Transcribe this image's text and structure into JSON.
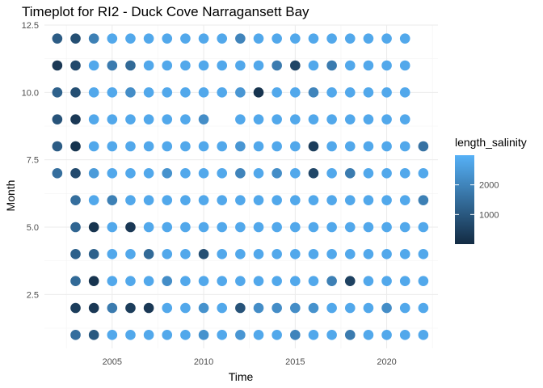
{
  "chart_data": {
    "type": "scatter",
    "title": "Timeplot for RI2 - Duck Cove Narragansett Bay",
    "xlabel": "Time",
    "ylabel": "Month",
    "xlim": [
      2001.3,
      2022.8
    ],
    "ylim": [
      0.5,
      12.5
    ],
    "x_ticks": [
      2005,
      2010,
      2015,
      2020
    ],
    "y_ticks": [
      2.5,
      5.0,
      7.5,
      10.0,
      12.5
    ],
    "x_tick_labels": [
      "2005",
      "2010",
      "2015",
      "2020"
    ],
    "y_tick_labels": [
      "2.5",
      "5.0",
      "7.5",
      "10.0",
      "12.5"
    ],
    "grid": true,
    "color_scale": {
      "name": "length_salinity",
      "range": [
        0,
        3000
      ],
      "low_color": "#132b43",
      "high_color": "#56b1f7",
      "ticks": [
        1000,
        2000
      ],
      "tick_labels": [
        "1000",
        "2000"
      ],
      "legend_position": "right"
    },
    "series": [
      {
        "year": 2002,
        "points": [
          [
            7,
            1500
          ],
          [
            8,
            1100
          ],
          [
            9,
            900
          ],
          [
            10,
            1200
          ],
          [
            11,
            300
          ],
          [
            12,
            1100
          ]
        ]
      },
      {
        "year": 2003,
        "points": [
          [
            1,
            1500
          ],
          [
            2,
            400
          ],
          [
            3,
            1400
          ],
          [
            4,
            1200
          ],
          [
            5,
            1300
          ],
          [
            6,
            1500
          ],
          [
            7,
            700
          ],
          [
            8,
            200
          ],
          [
            9,
            300
          ],
          [
            10,
            800
          ],
          [
            11,
            700
          ],
          [
            12,
            800
          ]
        ]
      },
      {
        "year": 2004,
        "points": [
          [
            1,
            1000
          ],
          [
            2,
            300
          ],
          [
            3,
            200
          ],
          [
            4,
            1200
          ],
          [
            5,
            200
          ],
          [
            6,
            2800
          ],
          [
            7,
            2500
          ],
          [
            8,
            2800
          ],
          [
            9,
            2800
          ],
          [
            10,
            2800
          ],
          [
            11,
            2800
          ],
          [
            12,
            1900
          ]
        ]
      },
      {
        "year": 2005,
        "points": [
          [
            1,
            2800
          ],
          [
            2,
            1800
          ],
          [
            3,
            2800
          ],
          [
            4,
            2800
          ],
          [
            5,
            2800
          ],
          [
            6,
            1900
          ],
          [
            7,
            2800
          ],
          [
            8,
            2800
          ],
          [
            9,
            2800
          ],
          [
            10,
            2800
          ],
          [
            11,
            1800
          ],
          [
            12,
            2800
          ]
        ]
      },
      {
        "year": 2006,
        "points": [
          [
            1,
            2800
          ],
          [
            2,
            400
          ],
          [
            3,
            2800
          ],
          [
            4,
            2800
          ],
          [
            5,
            300
          ],
          [
            6,
            2800
          ],
          [
            7,
            2800
          ],
          [
            8,
            2800
          ],
          [
            9,
            2800
          ],
          [
            10,
            2200
          ],
          [
            11,
            1400
          ],
          [
            12,
            2800
          ]
        ]
      },
      {
        "year": 2007,
        "points": [
          [
            1,
            2800
          ],
          [
            2,
            300
          ],
          [
            3,
            2800
          ],
          [
            4,
            1400
          ],
          [
            5,
            2800
          ],
          [
            6,
            2800
          ],
          [
            7,
            2800
          ],
          [
            8,
            2800
          ],
          [
            9,
            2800
          ],
          [
            10,
            2800
          ],
          [
            11,
            2800
          ],
          [
            12,
            2800
          ]
        ]
      },
      {
        "year": 2008,
        "points": [
          [
            1,
            2800
          ],
          [
            2,
            2800
          ],
          [
            3,
            2200
          ],
          [
            4,
            2800
          ],
          [
            5,
            2800
          ],
          [
            6,
            2800
          ],
          [
            7,
            2300
          ],
          [
            8,
            2800
          ],
          [
            9,
            2800
          ],
          [
            10,
            2800
          ],
          [
            11,
            2800
          ],
          [
            12,
            2800
          ]
        ]
      },
      {
        "year": 2009,
        "points": [
          [
            1,
            2800
          ],
          [
            2,
            2800
          ],
          [
            3,
            2800
          ],
          [
            4,
            2800
          ],
          [
            5,
            2800
          ],
          [
            6,
            2800
          ],
          [
            7,
            2800
          ],
          [
            8,
            2800
          ],
          [
            9,
            2800
          ],
          [
            10,
            2800
          ],
          [
            11,
            2800
          ],
          [
            12,
            2800
          ]
        ]
      },
      {
        "year": 2010,
        "points": [
          [
            1,
            2300
          ],
          [
            2,
            2300
          ],
          [
            3,
            2800
          ],
          [
            4,
            800
          ],
          [
            5,
            2800
          ],
          [
            6,
            2800
          ],
          [
            7,
            2800
          ],
          [
            8,
            2800
          ],
          [
            9,
            2200
          ],
          [
            10,
            2800
          ],
          [
            11,
            2800
          ],
          [
            12,
            2800
          ]
        ]
      },
      {
        "year": 2011,
        "points": [
          [
            1,
            2800
          ],
          [
            2,
            2800
          ],
          [
            3,
            2800
          ],
          [
            4,
            2800
          ],
          [
            5,
            2800
          ],
          [
            6,
            2800
          ],
          [
            7,
            2800
          ],
          [
            8,
            2800
          ],
          [
            10,
            2800
          ],
          [
            11,
            2800
          ],
          [
            12,
            2800
          ]
        ]
      },
      {
        "year": 2012,
        "points": [
          [
            1,
            2400
          ],
          [
            2,
            900
          ],
          [
            3,
            2800
          ],
          [
            4,
            2800
          ],
          [
            5,
            2800
          ],
          [
            6,
            2800
          ],
          [
            7,
            2000
          ],
          [
            8,
            2400
          ],
          [
            9,
            2800
          ],
          [
            10,
            2400
          ],
          [
            11,
            2800
          ],
          [
            12,
            2000
          ]
        ]
      },
      {
        "year": 2013,
        "points": [
          [
            1,
            2800
          ],
          [
            2,
            2200
          ],
          [
            3,
            2800
          ],
          [
            4,
            2800
          ],
          [
            5,
            2800
          ],
          [
            6,
            2800
          ],
          [
            7,
            2800
          ],
          [
            8,
            2800
          ],
          [
            9,
            2800
          ],
          [
            10,
            200
          ],
          [
            11,
            2800
          ],
          [
            12,
            2800
          ]
        ]
      },
      {
        "year": 2014,
        "points": [
          [
            1,
            2800
          ],
          [
            2,
            2200
          ],
          [
            3,
            2800
          ],
          [
            4,
            2800
          ],
          [
            5,
            2800
          ],
          [
            6,
            2800
          ],
          [
            7,
            2200
          ],
          [
            8,
            2800
          ],
          [
            9,
            2800
          ],
          [
            10,
            2800
          ],
          [
            11,
            1800
          ],
          [
            12,
            2800
          ]
        ]
      },
      {
        "year": 2015,
        "points": [
          [
            1,
            2000
          ],
          [
            2,
            2200
          ],
          [
            3,
            2800
          ],
          [
            4,
            2800
          ],
          [
            5,
            2800
          ],
          [
            6,
            2800
          ],
          [
            7,
            2800
          ],
          [
            8,
            2800
          ],
          [
            9,
            2800
          ],
          [
            10,
            2800
          ],
          [
            11,
            600
          ],
          [
            12,
            2800
          ]
        ]
      },
      {
        "year": 2016,
        "points": [
          [
            1,
            2800
          ],
          [
            2,
            2300
          ],
          [
            3,
            2800
          ],
          [
            4,
            2800
          ],
          [
            5,
            2800
          ],
          [
            6,
            2800
          ],
          [
            7,
            600
          ],
          [
            8,
            400
          ],
          [
            9,
            2800
          ],
          [
            10,
            2000
          ],
          [
            11,
            2800
          ],
          [
            12,
            2800
          ]
        ]
      },
      {
        "year": 2017,
        "points": [
          [
            1,
            2800
          ],
          [
            2,
            2800
          ],
          [
            3,
            1900
          ],
          [
            4,
            2800
          ],
          [
            5,
            2800
          ],
          [
            6,
            2800
          ],
          [
            7,
            2800
          ],
          [
            8,
            2800
          ],
          [
            9,
            2800
          ],
          [
            10,
            2800
          ],
          [
            11,
            1800
          ],
          [
            12,
            2800
          ]
        ]
      },
      {
        "year": 2018,
        "points": [
          [
            1,
            1800
          ],
          [
            2,
            2800
          ],
          [
            3,
            500
          ],
          [
            4,
            2800
          ],
          [
            5,
            2800
          ],
          [
            6,
            2800
          ],
          [
            7,
            1800
          ],
          [
            8,
            2800
          ],
          [
            9,
            2800
          ],
          [
            10,
            2800
          ],
          [
            11,
            2800
          ],
          [
            12,
            2800
          ]
        ]
      },
      {
        "year": 2019,
        "points": [
          [
            1,
            2800
          ],
          [
            2,
            2800
          ],
          [
            3,
            2800
          ],
          [
            4,
            2800
          ],
          [
            5,
            2800
          ],
          [
            6,
            2800
          ],
          [
            7,
            2800
          ],
          [
            8,
            2800
          ],
          [
            9,
            2800
          ],
          [
            10,
            2800
          ],
          [
            11,
            2800
          ],
          [
            12,
            2800
          ]
        ]
      },
      {
        "year": 2020,
        "points": [
          [
            1,
            2800
          ],
          [
            2,
            2200
          ],
          [
            3,
            2800
          ],
          [
            4,
            2800
          ],
          [
            5,
            2800
          ],
          [
            6,
            2800
          ],
          [
            7,
            2800
          ],
          [
            8,
            2800
          ],
          [
            9,
            2800
          ],
          [
            10,
            2800
          ],
          [
            11,
            2800
          ],
          [
            12,
            2800
          ]
        ]
      },
      {
        "year": 2021,
        "points": [
          [
            1,
            2800
          ],
          [
            2,
            2800
          ],
          [
            3,
            2800
          ],
          [
            4,
            2800
          ],
          [
            5,
            2800
          ],
          [
            6,
            2800
          ],
          [
            7,
            2800
          ],
          [
            8,
            2800
          ],
          [
            9,
            2800
          ],
          [
            10,
            2800
          ],
          [
            11,
            2800
          ],
          [
            12,
            2800
          ]
        ]
      },
      {
        "year": 2022,
        "points": [
          [
            1,
            2800
          ],
          [
            2,
            2800
          ],
          [
            3,
            2800
          ],
          [
            4,
            2800
          ],
          [
            5,
            2800
          ],
          [
            6,
            1900
          ],
          [
            7,
            2800
          ],
          [
            8,
            1600
          ]
        ]
      }
    ]
  }
}
